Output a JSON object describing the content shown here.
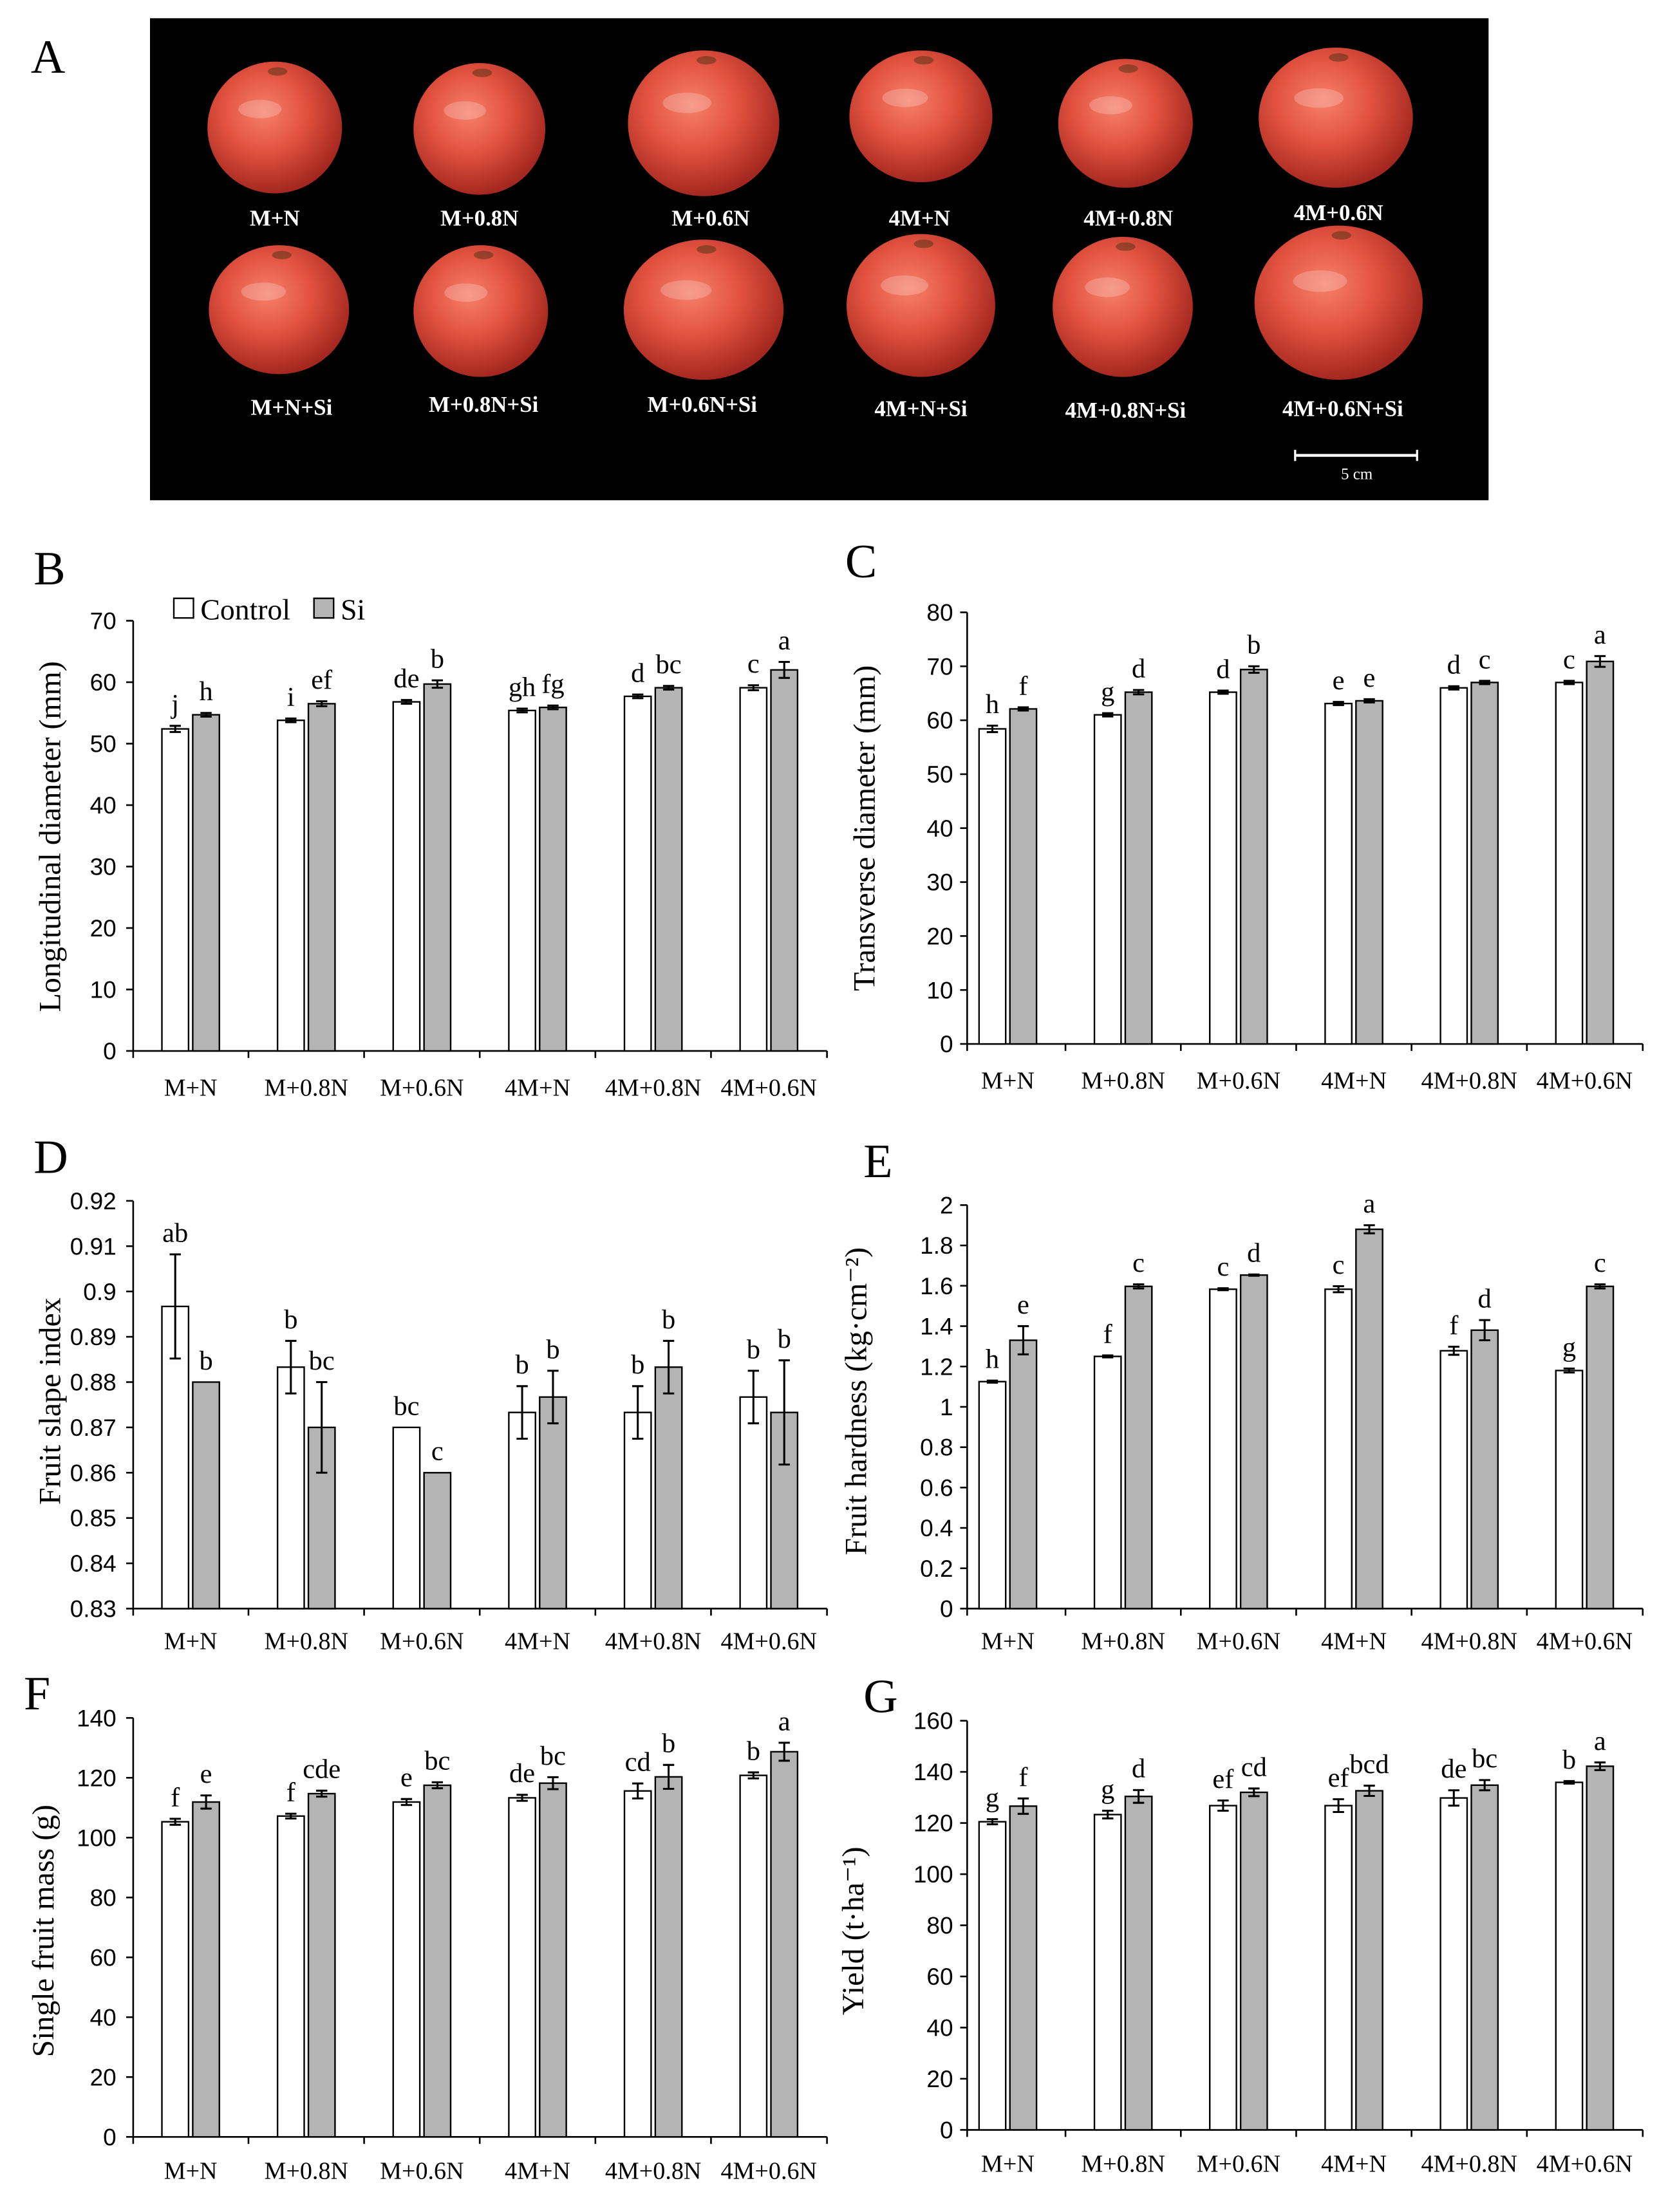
{
  "panel_labels": [
    "A",
    "B",
    "C",
    "D",
    "E",
    "F",
    "G"
  ],
  "photo": {
    "row1_labels": [
      "M+N",
      "M+0.8N",
      "M+0.6N",
      "4M+N",
      "4M+0.8N",
      "4M+0.6N"
    ],
    "row2_labels": [
      "M+N+Si",
      "M+0.8N+Si",
      "M+0.6N+Si",
      "4M+N+Si",
      "4M+0.8N+Si",
      "4M+0.6N+Si"
    ],
    "scale_bar_label": "5 cm"
  },
  "colors": {
    "photo_background": "#000000",
    "tomato": "#e0503f",
    "axis": "#000000"
  },
  "chart_data": [
    {
      "type": "bar",
      "ylabel": "Longitudinal diameter (mm)",
      "ylim": [
        0,
        70
      ],
      "yticks": [
        "0",
        "10",
        "20",
        "30",
        "40",
        "50",
        "60",
        "70"
      ],
      "categories": [
        "M+N",
        "M+0.8N",
        "M+0.6N",
        "4M+N",
        "4M+0.8N",
        "4M+0.6N"
      ],
      "legend": "top-left",
      "series": [
        {
          "name": "Control",
          "color": "#ffffff",
          "values": [
            52.4,
            53.8,
            56.8,
            55.4,
            57.7,
            59.1
          ],
          "errors": [
            0.5,
            0.3,
            0.3,
            0.3,
            0.3,
            0.4
          ],
          "letters": [
            "j",
            "i",
            "de",
            "gh",
            "d",
            "c"
          ]
        },
        {
          "name": "Si",
          "color": "#b4b4b4",
          "values": [
            54.7,
            56.5,
            59.7,
            55.9,
            59.1,
            62.0
          ],
          "errors": [
            0.3,
            0.4,
            0.6,
            0.3,
            0.3,
            1.3
          ],
          "letters": [
            "h",
            "ef",
            "b",
            "fg",
            "bc",
            "a"
          ]
        }
      ]
    },
    {
      "type": "bar",
      "ylabel": "Transverse diameter (mm)",
      "ylim": [
        0,
        80
      ],
      "yticks": [
        "0",
        "10",
        "20",
        "30",
        "40",
        "50",
        "60",
        "70",
        "80"
      ],
      "categories": [
        "M+N",
        "M+0.8N",
        "M+0.6N",
        "4M+N",
        "4M+0.8N",
        "4M+0.6N"
      ],
      "series": [
        {
          "name": "Control",
          "color": "#ffffff",
          "values": [
            58.4,
            61.0,
            65.2,
            63.1,
            66.0,
            67.0
          ],
          "errors": [
            0.6,
            0.3,
            0.3,
            0.3,
            0.3,
            0.3
          ],
          "letters": [
            "h",
            "g",
            "d",
            "e",
            "d",
            "c"
          ]
        },
        {
          "name": "Si",
          "color": "#b4b4b4",
          "values": [
            62.1,
            65.2,
            69.4,
            63.6,
            67.0,
            70.9
          ],
          "errors": [
            0.3,
            0.4,
            0.6,
            0.3,
            0.3,
            1.0
          ],
          "letters": [
            "f",
            "d",
            "b",
            "e",
            "c",
            "a"
          ]
        }
      ]
    },
    {
      "type": "bar",
      "ylabel": "Fruit slape index",
      "ylim": [
        0.83,
        0.92
      ],
      "yticks": [
        "0.83",
        "0.84",
        "0.85",
        "0.86",
        "0.87",
        "0.88",
        "0.89",
        "0.9",
        "0.91",
        "0.92"
      ],
      "categories": [
        "M+N",
        "M+0.8N",
        "M+0.6N",
        "4M+N",
        "4M+0.8N",
        "4M+0.6N"
      ],
      "series": [
        {
          "name": "Control",
          "color": "#ffffff",
          "values": [
            0.8967,
            0.8833,
            0.87,
            0.8733,
            0.8733,
            0.8767
          ],
          "errors": [
            0.0115,
            0.0058,
            0,
            0.0058,
            0.0058,
            0.0058
          ],
          "letters": [
            "ab",
            "b",
            "bc",
            "b",
            "b",
            "b"
          ]
        },
        {
          "name": "Si",
          "color": "#b4b4b4",
          "values": [
            0.88,
            0.87,
            0.86,
            0.8767,
            0.8833,
            0.8733
          ],
          "errors": [
            0,
            0.01,
            0,
            0.0058,
            0.0058,
            0.0115
          ],
          "letters": [
            "b",
            "bc",
            "c",
            "b",
            "b",
            "b"
          ]
        }
      ]
    },
    {
      "type": "bar",
      "ylabel": "Fruit hardness (kg·cm⁻²)",
      "ylim": [
        0,
        2
      ],
      "yticks": [
        "0",
        "0.2",
        "0.4",
        "0.6",
        "0.8",
        "1",
        "1.2",
        "1.4",
        "1.6",
        "1.8",
        "2"
      ],
      "categories": [
        "M+N",
        "M+0.8N",
        "M+0.6N",
        "4M+N",
        "4M+0.8N",
        "4M+0.6N"
      ],
      "series": [
        {
          "name": "Control",
          "color": "#ffffff",
          "values": [
            1.125,
            1.25,
            1.583,
            1.583,
            1.278,
            1.18
          ],
          "errors": [
            0.005,
            0.005,
            0.005,
            0.015,
            0.02,
            0.01
          ],
          "letters": [
            "h",
            "f",
            "c",
            "c",
            "f",
            "g"
          ]
        },
        {
          "name": "Si",
          "color": "#b4b4b4",
          "values": [
            1.33,
            1.597,
            1.653,
            1.88,
            1.38,
            1.597
          ],
          "errors": [
            0.07,
            0.01,
            0.003,
            0.02,
            0.05,
            0.01
          ],
          "letters": [
            "e",
            "c",
            "d",
            "a",
            "d",
            "c"
          ]
        }
      ]
    },
    {
      "type": "bar",
      "ylabel": "Single fruit mass (g)",
      "ylim": [
        0,
        140
      ],
      "yticks": [
        "0",
        "20",
        "40",
        "60",
        "80",
        "100",
        "120",
        "140"
      ],
      "categories": [
        "M+N",
        "M+0.8N",
        "M+0.6N",
        "4M+N",
        "4M+0.8N",
        "4M+0.6N"
      ],
      "series": [
        {
          "name": "Control",
          "color": "#ffffff",
          "values": [
            105.3,
            107.2,
            111.9,
            113.3,
            115.6,
            120.8
          ],
          "errors": [
            1.0,
            0.8,
            1.0,
            1.0,
            2.5,
            1.0
          ],
          "letters": [
            "f",
            "f",
            "e",
            "de",
            "cd",
            "b"
          ]
        },
        {
          "name": "Si",
          "color": "#b4b4b4",
          "values": [
            111.9,
            114.7,
            117.5,
            118.2,
            120.3,
            128.7
          ],
          "errors": [
            2.2,
            1.0,
            1.0,
            2.0,
            4.0,
            3.0
          ],
          "letters": [
            "e",
            "cde",
            "bc",
            "bc",
            "b",
            "a"
          ]
        }
      ]
    },
    {
      "type": "bar",
      "ylabel": "Yield (t·ha⁻¹)",
      "ylim": [
        0,
        160
      ],
      "yticks": [
        "0",
        "20",
        "40",
        "60",
        "80",
        "100",
        "120",
        "140",
        "160"
      ],
      "categories": [
        "M+N",
        "M+0.8N",
        "M+0.6N",
        "4M+N",
        "4M+0.8N",
        "4M+0.6N"
      ],
      "series": [
        {
          "name": "Control",
          "color": "#ffffff",
          "values": [
            120.5,
            123.3,
            126.8,
            126.8,
            129.8,
            135.9
          ],
          "errors": [
            1.0,
            1.5,
            2.0,
            2.5,
            3.0,
            0.5
          ],
          "letters": [
            "g",
            "g",
            "ef",
            "ef",
            "de",
            "b"
          ]
        },
        {
          "name": "Si",
          "color": "#b4b4b4",
          "values": [
            126.6,
            130.4,
            132.0,
            132.6,
            134.8,
            142.2
          ],
          "errors": [
            3.0,
            2.5,
            1.5,
            2.0,
            2.0,
            1.5
          ],
          "letters": [
            "f",
            "d",
            "cd",
            "bcd",
            "bc",
            "a"
          ]
        }
      ]
    }
  ]
}
